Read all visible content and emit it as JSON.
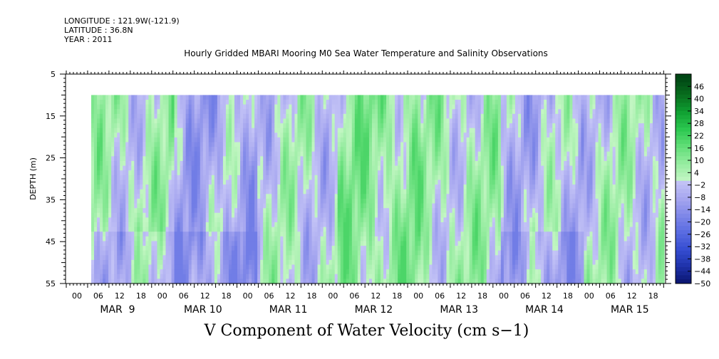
{
  "header": {
    "longitude": "LONGITUDE : 121.9W(-121.9)",
    "latitude": "LATITUDE : 36.8N",
    "year": "YEAR : 2011"
  },
  "chart_data": {
    "type": "heatmap",
    "title": "Hourly Gridded MBARI Mooring M0 Sea Water Temperature and Salinity Observations",
    "variable_title": "V Component of Water Velocity (cm s−1)",
    "ylabel": "DEPTH (m)",
    "ylim": [
      5,
      55
    ],
    "y_inverted": true,
    "y_ticks": [
      5,
      15,
      25,
      35,
      45,
      55
    ],
    "data_depth_range": [
      10,
      55
    ],
    "x_hour_ticks": [
      "00",
      "06",
      "12",
      "18",
      "00",
      "06",
      "12",
      "18",
      "00",
      "06",
      "12",
      "18",
      "00",
      "06",
      "12",
      "18",
      "00",
      "06",
      "12",
      "18",
      "00",
      "06",
      "12",
      "18",
      "00",
      "06",
      "12",
      "18"
    ],
    "x_day_labels": [
      "MAR  9",
      "MAR 10",
      "MAR 11",
      "MAR 12",
      "MAR 13",
      "MAR 14",
      "MAR 15"
    ],
    "colorbar": {
      "labels": [
        "46",
        "40",
        "34",
        "28",
        "22",
        "16",
        "10",
        "4",
        "−2",
        "−8",
        "−14",
        "−20",
        "−26",
        "−32",
        "−38",
        "−44",
        "−50"
      ],
      "range": [
        -50,
        52
      ],
      "positive_color": "#18c83c",
      "negative_color": "#3c50e0"
    },
    "field_description_days": [
      {
        "day": "MAR 9",
        "dominant": "mixed, negative bands near surface and bottom"
      },
      {
        "day": "MAR 10",
        "dominant": "negative (blue) mid-depth"
      },
      {
        "day": "MAR 11",
        "dominant": "mixed"
      },
      {
        "day": "MAR 12",
        "dominant": "positive (green)"
      },
      {
        "day": "MAR 13",
        "dominant": "mixed, positive"
      },
      {
        "day": "MAR 14",
        "dominant": "negative at depth"
      },
      {
        "day": "MAR 15",
        "dominant": "mixed"
      }
    ]
  }
}
